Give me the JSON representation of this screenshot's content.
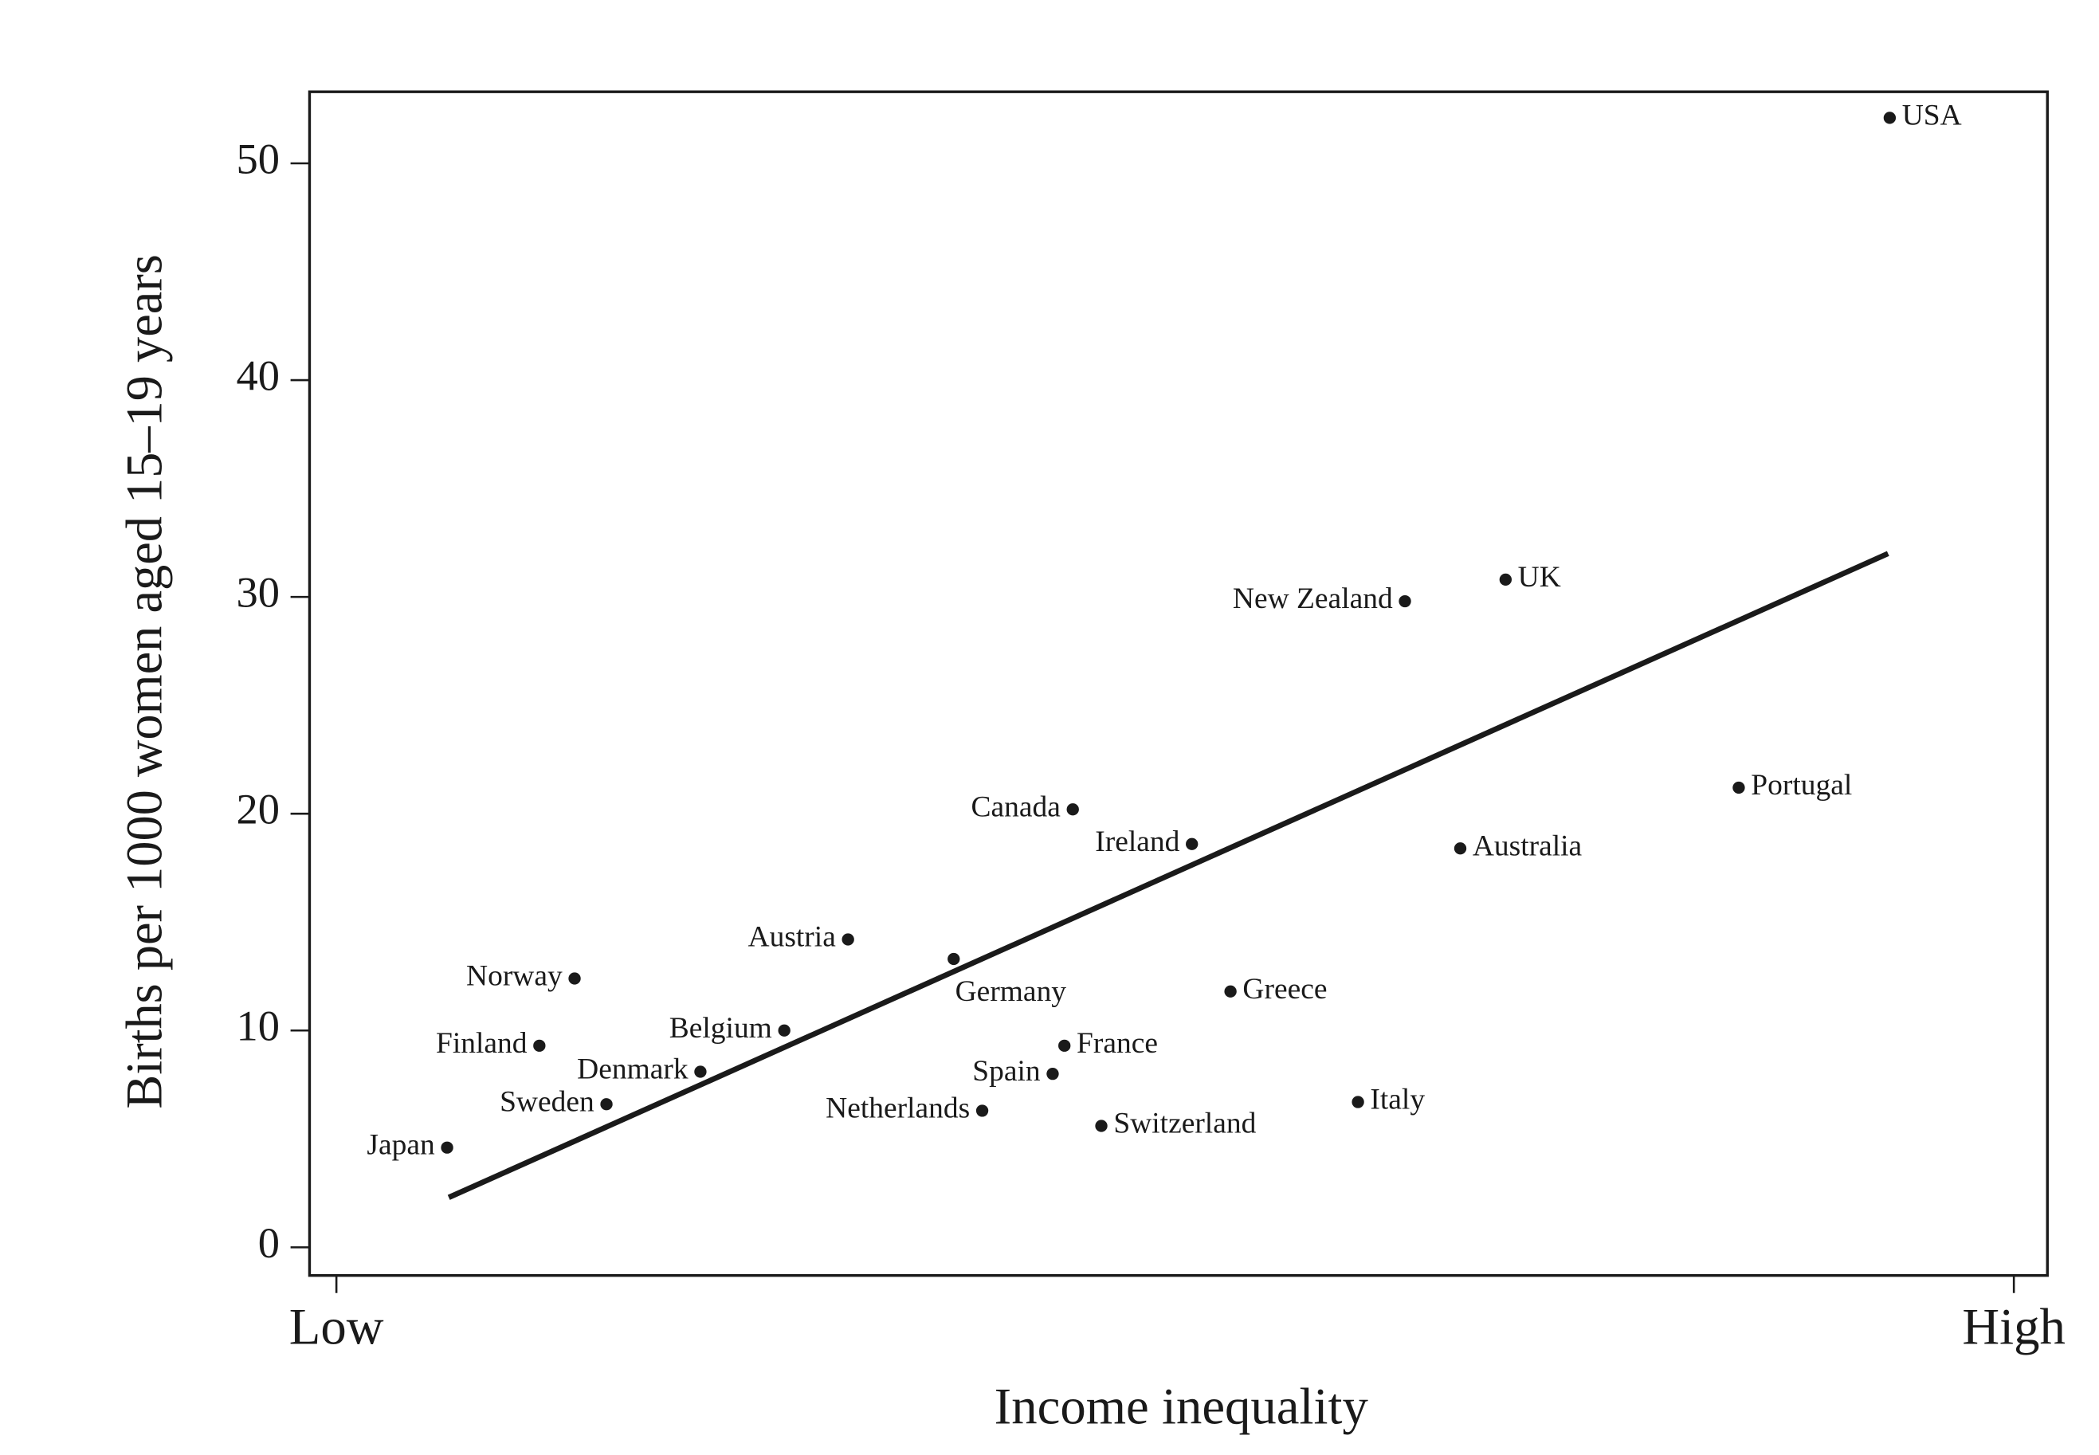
{
  "chart_data": {
    "type": "scatter",
    "xlabel": "Income inequality",
    "ylabel": "Births per 1000 women aged 15–19 years",
    "labels": [
      "USA",
      "UK",
      "New Zealand",
      "Portugal",
      "Australia",
      "Canada",
      "Ireland",
      "Austria",
      "Germany",
      "Norway",
      "Greece",
      "Belgium",
      "France",
      "Finland",
      "Denmark",
      "Spain",
      "Sweden",
      "Italy",
      "Netherlands",
      "Switzerland",
      "Japan"
    ],
    "x": [
      0.926,
      0.697,
      0.637,
      0.836,
      0.67,
      0.439,
      0.51,
      0.305,
      0.368,
      0.142,
      0.533,
      0.267,
      0.434,
      0.121,
      0.217,
      0.427,
      0.161,
      0.609,
      0.385,
      0.456,
      0.066
    ],
    "values": [
      52.1,
      30.8,
      29.8,
      21.2,
      18.4,
      20.2,
      18.6,
      14.2,
      13.3,
      12.4,
      11.8,
      10.0,
      9.3,
      9.3,
      8.1,
      8.0,
      6.6,
      6.7,
      6.3,
      5.6,
      4.6
    ],
    "color": "#1a1a1a",
    "trend_line": {
      "x": [
        0.067,
        0.925
      ],
      "values": [
        2.3,
        32.0
      ]
    },
    "xlim": [
      -0.016,
      1.02
    ],
    "ylim": [
      -1.3,
      53.3
    ],
    "xticks": [
      {
        "value": 0,
        "label": "Low"
      },
      {
        "value": 1,
        "label": "High"
      }
    ],
    "yticks": [
      0,
      10,
      20,
      30,
      40,
      50
    ]
  }
}
